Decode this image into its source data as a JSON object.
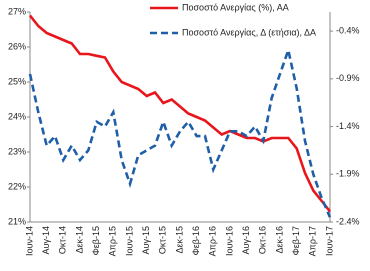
{
  "chart_data": {
    "type": "line",
    "categories": [
      "Ιουν-14",
      null,
      "Αυγ-14",
      null,
      "Οκτ-14",
      null,
      "Δεκ-14",
      null,
      "Φεβ-15",
      null,
      "Απρ-15",
      null,
      "Ιουν-15",
      null,
      "Αυγ-15",
      null,
      "Οκτ-15",
      null,
      "Δεκ-15",
      null,
      "Φεβ-16",
      null,
      "Απρ-16",
      null,
      "Ιουν-16",
      null,
      "Αυγ-16",
      null,
      "Οκτ-16",
      null,
      "Δεκ-16",
      null,
      "Φεβ-17",
      null,
      "Απρ-17",
      null,
      "Ιουν-17"
    ],
    "series": [
      {
        "name": "Ποσοστό Ανεργίας (%), ΑΑ",
        "color": "#e8161b",
        "dashed": false,
        "values": [
          26.9,
          26.6,
          26.4,
          26.3,
          26.2,
          26.1,
          25.8,
          25.8,
          25.75,
          25.7,
          25.3,
          25.0,
          24.9,
          24.8,
          24.6,
          24.7,
          24.4,
          24.5,
          24.3,
          24.1,
          24.0,
          23.9,
          23.7,
          23.5,
          23.6,
          23.5,
          23.4,
          23.4,
          23.3,
          23.4,
          23.4,
          23.4,
          23.1,
          22.4,
          21.9,
          21.6,
          21.3
        ]
      },
      {
        "name": "Ποσοστό Ανεργίας, Δ (ετήσια), ΔΑ",
        "color": "#1f5fa8",
        "dashed": true,
        "axis": "y2",
        "values": [
          -0.85,
          -1.25,
          -1.6,
          -1.5,
          -1.75,
          -1.6,
          -1.75,
          -1.65,
          -1.35,
          -1.4,
          -1.25,
          -1.75,
          -2.0,
          -1.7,
          -1.65,
          -1.6,
          -1.35,
          -1.6,
          -1.45,
          -1.35,
          -1.5,
          -1.5,
          -1.85,
          -1.65,
          -1.45,
          -1.45,
          -1.5,
          -1.4,
          -1.55,
          -1.1,
          -0.85,
          -0.6,
          -1.0,
          -1.55,
          -1.9,
          -2.15,
          -2.35
        ]
      }
    ],
    "ylim": [
      21,
      27
    ],
    "yticks": [
      {
        "value": 21,
        "label": "21%"
      },
      {
        "value": 22,
        "label": "22%"
      },
      {
        "value": 23,
        "label": "23%"
      },
      {
        "value": 24,
        "label": "24%"
      },
      {
        "value": 25,
        "label": "25%"
      },
      {
        "value": 26,
        "label": "26%"
      },
      {
        "value": 27,
        "label": "27%"
      }
    ],
    "y2lim": [
      -2.4,
      -0.2
    ],
    "y2ticks": [
      {
        "value": -2.4,
        "label": "-2.4%"
      },
      {
        "value": -1.9,
        "label": "-1.9%"
      },
      {
        "value": -1.4,
        "label": "-1.4%"
      },
      {
        "value": -0.9,
        "label": "-0.9%"
      },
      {
        "value": -0.4,
        "label": "-0.4%"
      }
    ],
    "legend": "top-right",
    "grid": false
  }
}
